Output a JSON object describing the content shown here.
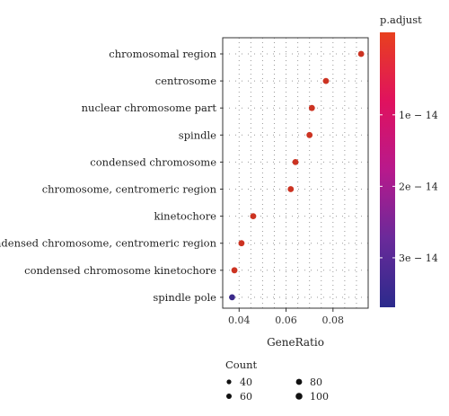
{
  "chart_data": {
    "type": "scatter",
    "title": "",
    "xlabel": "GeneRatio",
    "ylabel": "",
    "xlim": [
      0.033,
      0.095
    ],
    "x_ticks": [
      0.04,
      0.06,
      0.08
    ],
    "x_tick_labels": [
      "0.04",
      "0.06",
      "0.08"
    ],
    "grid": "dotted",
    "categories": [
      "chromosomal region",
      "centrosome",
      "nuclear chromosome part",
      "spindle",
      "condensed chromosome",
      "chromosome, centromeric region",
      "kinetochore",
      "condensed chromosome, centromeric region",
      "condensed chromosome kinetochore",
      "spindle pole"
    ],
    "points": [
      {
        "category": "chromosomal region",
        "x": 0.092,
        "color": "#cc3322"
      },
      {
        "category": "centrosome",
        "x": 0.077,
        "color": "#cc3322"
      },
      {
        "category": "nuclear chromosome part",
        "x": 0.071,
        "color": "#cc3322"
      },
      {
        "category": "spindle",
        "x": 0.07,
        "color": "#cc3322"
      },
      {
        "category": "condensed chromosome",
        "x": 0.064,
        "color": "#cc3322"
      },
      {
        "category": "chromosome, centromeric region",
        "x": 0.062,
        "color": "#cc3322"
      },
      {
        "category": "kinetochore",
        "x": 0.046,
        "color": "#cc3322"
      },
      {
        "category": "condensed chromosome, centromeric region",
        "x": 0.041,
        "color": "#cc3322"
      },
      {
        "category": "condensed chromosome kinetochore",
        "x": 0.038,
        "color": "#cc3322"
      },
      {
        "category": "spindle pole",
        "x": 0.037,
        "color": "#3b2a8a"
      }
    ],
    "color_legend": {
      "title": "p.adjust",
      "gradient": [
        "#2b2a8c",
        "#6a2a9a",
        "#b8198c",
        "#e0125e",
        "#e8401e"
      ],
      "tick_labels": [
        "1e − 14",
        "2e − 14",
        "3e − 14"
      ],
      "tick_fractions": [
        0.3,
        0.56,
        0.82
      ]
    },
    "size_legend": {
      "title": "Count",
      "labels": [
        "40",
        "60",
        "80",
        "100"
      ]
    }
  }
}
